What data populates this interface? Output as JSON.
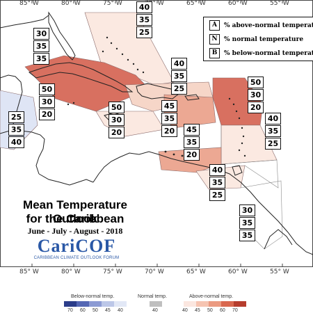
{
  "longitude_labels": [
    "85° W",
    "80° W",
    "75° W",
    "70° W",
    "65° W",
    "60° W",
    "55° W"
  ],
  "legend": {
    "items": [
      {
        "key": "A",
        "text": "% above-normal temperature"
      },
      {
        "key": "N",
        "text": "% normal temperature"
      },
      {
        "key": "B",
        "text": "% below-normal temperature"
      }
    ]
  },
  "regions": [
    {
      "id": "belize-honduras-coast",
      "values": [
        "30",
        "35",
        "35"
      ]
    },
    {
      "id": "bahamas",
      "values": [
        "40",
        "35",
        "25"
      ]
    },
    {
      "id": "cuba-cayman",
      "values": [
        "50",
        "30",
        "20"
      ]
    },
    {
      "id": "hispaniola",
      "values": [
        "40",
        "35",
        "25"
      ]
    },
    {
      "id": "northern-leeward",
      "values": [
        "50",
        "30",
        "20"
      ]
    },
    {
      "id": "central-america",
      "values": [
        "25",
        "35",
        "40"
      ]
    },
    {
      "id": "jamaica",
      "values": [
        "50",
        "30",
        "20"
      ]
    },
    {
      "id": "puerto-rico",
      "values": [
        "45",
        "35",
        "20"
      ]
    },
    {
      "id": "windward-islands",
      "values": [
        "40",
        "35",
        "25"
      ]
    },
    {
      "id": "aruba-curacao",
      "values": [
        "45",
        "35",
        "20"
      ]
    },
    {
      "id": "trinidad",
      "values": [
        "40",
        "35",
        "25"
      ]
    },
    {
      "id": "guianas",
      "values": [
        "30",
        "35",
        "35"
      ]
    }
  ],
  "title": {
    "line1": "Mean Temperature Outlook",
    "line2": "for the Caribbean",
    "period": "June - July - August - 2018"
  },
  "logo": {
    "name": "CariCOF",
    "tagline": "CARIBBEAN CLIMATE OUTLOOK FORUM"
  },
  "colorbar": {
    "below_label": "Below-normal temp.",
    "normal_label": "Normal temp.",
    "above_label": "Above-normal temp.",
    "below_ticks": [
      "70",
      "60",
      "50",
      "45",
      "40"
    ],
    "normal_ticks": [
      "40"
    ],
    "above_ticks": [
      "40",
      "45",
      "50",
      "60",
      "70"
    ],
    "below_colors": [
      "#2b3d8a",
      "#5467b4",
      "#8c9bd4",
      "#bcc7e8",
      "#e2e8f6"
    ],
    "normal_colors": [
      "#bfbfbf"
    ],
    "above_colors": [
      "#fbe7e0",
      "#f6c4b1",
      "#eb9a80",
      "#d9684f",
      "#b63d2d"
    ]
  },
  "colors": {
    "strong_above": "#d87060",
    "moderate_above": "#eca893",
    "light_above": "#f6d6c8",
    "faint_above": "#fbe9e1",
    "faint_below": "#dfe5f5"
  }
}
